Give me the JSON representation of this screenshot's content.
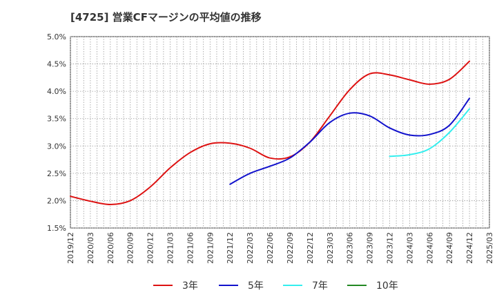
{
  "title": "[4725]  営業CFマージンの平均値の推移",
  "chart_data": {
    "type": "line",
    "title": "[4725]  営業CFマージンの平均値の推移",
    "xlabel": "",
    "ylabel": "",
    "ylim": [
      1.5,
      5.0
    ],
    "grid": true,
    "legend_position": "bottom",
    "y_ticks": [
      "1.5%",
      "2.0%",
      "2.5%",
      "3.0%",
      "3.5%",
      "4.0%",
      "4.5%",
      "5.0%"
    ],
    "x_ticks": [
      "2019/12",
      "2020/03",
      "2020/06",
      "2020/09",
      "2020/12",
      "2021/03",
      "2021/06",
      "2021/09",
      "2021/12",
      "2022/03",
      "2022/06",
      "2022/09",
      "2022/12",
      "2023/03",
      "2023/06",
      "2023/09",
      "2023/12",
      "2024/03",
      "2024/06",
      "2024/09",
      "2024/12",
      "2025/03"
    ],
    "series": [
      {
        "name": "3年",
        "color": "#dd1111",
        "points": [
          [
            "2019/12",
            2.08
          ],
          [
            "2020/03",
            1.99
          ],
          [
            "2020/06",
            1.93
          ],
          [
            "2020/09",
            2.0
          ],
          [
            "2020/12",
            2.25
          ],
          [
            "2021/03",
            2.6
          ],
          [
            "2021/06",
            2.88
          ],
          [
            "2021/09",
            3.04
          ],
          [
            "2021/12",
            3.05
          ],
          [
            "2022/03",
            2.96
          ],
          [
            "2022/06",
            2.78
          ],
          [
            "2022/09",
            2.8
          ],
          [
            "2022/12",
            3.07
          ],
          [
            "2023/03",
            3.55
          ],
          [
            "2023/06",
            4.03
          ],
          [
            "2023/09",
            4.32
          ],
          [
            "2023/12",
            4.3
          ],
          [
            "2024/03",
            4.21
          ],
          [
            "2024/06",
            4.13
          ],
          [
            "2024/09",
            4.22
          ],
          [
            "2024/12",
            4.55
          ]
        ]
      },
      {
        "name": "5年",
        "color": "#1111cc",
        "points": [
          [
            "2021/12",
            2.3
          ],
          [
            "2022/03",
            2.5
          ],
          [
            "2022/06",
            2.63
          ],
          [
            "2022/09",
            2.78
          ],
          [
            "2022/12",
            3.07
          ],
          [
            "2023/03",
            3.43
          ],
          [
            "2023/06",
            3.6
          ],
          [
            "2023/09",
            3.55
          ],
          [
            "2023/12",
            3.33
          ],
          [
            "2024/03",
            3.2
          ],
          [
            "2024/06",
            3.21
          ],
          [
            "2024/09",
            3.38
          ],
          [
            "2024/12",
            3.87
          ]
        ]
      },
      {
        "name": "7年",
        "color": "#33eeee",
        "points": [
          [
            "2023/12",
            2.81
          ],
          [
            "2024/03",
            2.84
          ],
          [
            "2024/06",
            2.95
          ],
          [
            "2024/09",
            3.25
          ],
          [
            "2024/12",
            3.68
          ]
        ]
      },
      {
        "name": "10年",
        "color": "#228822",
        "points": []
      }
    ]
  }
}
